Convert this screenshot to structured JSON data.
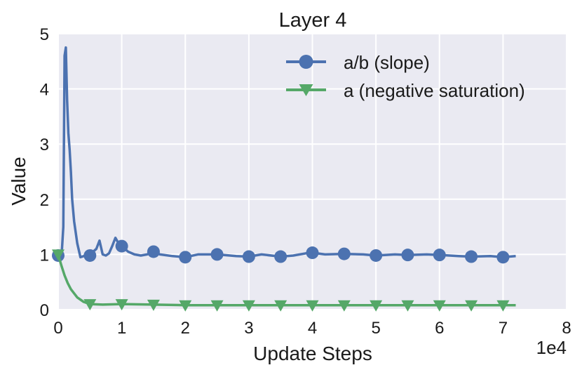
{
  "chart_data": {
    "type": "line",
    "title": "Layer 4",
    "xlabel": "Update Steps",
    "ylabel": "Value",
    "x_offset_label": "1e4",
    "xlim": [
      0,
      8
    ],
    "ylim": [
      0,
      5
    ],
    "x_ticks": [
      "0",
      "1",
      "2",
      "3",
      "4",
      "5",
      "6",
      "7",
      "8"
    ],
    "y_ticks": [
      "0",
      "1",
      "2",
      "3",
      "4",
      "5"
    ],
    "grid": true,
    "legend_position": "top-right",
    "series": [
      {
        "name": "a/b (slope)",
        "color": "#4c72b0",
        "marker": "circle",
        "x": [
          0.0,
          0.03,
          0.06,
          0.08,
          0.1,
          0.12,
          0.14,
          0.16,
          0.18,
          0.2,
          0.22,
          0.25,
          0.3,
          0.35,
          0.4,
          0.45,
          0.5,
          0.55,
          0.6,
          0.65,
          0.7,
          0.75,
          0.8,
          0.85,
          0.9,
          0.95,
          1.0,
          1.05,
          1.1,
          1.2,
          1.3,
          1.4,
          1.5,
          1.6,
          1.8,
          2.0,
          2.2,
          2.5,
          2.8,
          3.0,
          3.2,
          3.5,
          3.7,
          3.9,
          4.0,
          4.2,
          4.5,
          4.8,
          5.0,
          5.3,
          5.5,
          5.8,
          6.0,
          6.3,
          6.5,
          6.8,
          7.0,
          7.2
        ],
        "y": [
          0.98,
          1.0,
          1.1,
          1.5,
          4.6,
          4.75,
          3.8,
          3.2,
          2.9,
          2.5,
          2.0,
          1.6,
          1.2,
          0.95,
          0.97,
          1.0,
          0.98,
          1.05,
          1.1,
          1.25,
          1.0,
          0.98,
          1.02,
          1.15,
          1.3,
          1.2,
          1.15,
          1.1,
          1.05,
          1.0,
          0.98,
          1.0,
          1.05,
          1.0,
          0.97,
          0.95,
          1.0,
          1.0,
          0.97,
          0.96,
          1.0,
          0.96,
          0.98,
          1.02,
          1.03,
          1.0,
          1.01,
          1.0,
          0.98,
          1.0,
          0.99,
          1.0,
          0.99,
          0.97,
          0.96,
          0.97,
          0.95,
          0.97
        ]
      },
      {
        "name": "a (negative saturation)",
        "color": "#55a868",
        "marker": "triangle-down",
        "x": [
          0.0,
          0.05,
          0.1,
          0.15,
          0.2,
          0.3,
          0.4,
          0.5,
          0.7,
          1.0,
          1.5,
          2.0,
          3.0,
          4.0,
          5.0,
          6.0,
          7.0,
          7.2
        ],
        "y": [
          1.0,
          0.8,
          0.62,
          0.48,
          0.37,
          0.22,
          0.14,
          0.1,
          0.09,
          0.1,
          0.09,
          0.08,
          0.08,
          0.08,
          0.08,
          0.08,
          0.08,
          0.08
        ]
      }
    ]
  }
}
